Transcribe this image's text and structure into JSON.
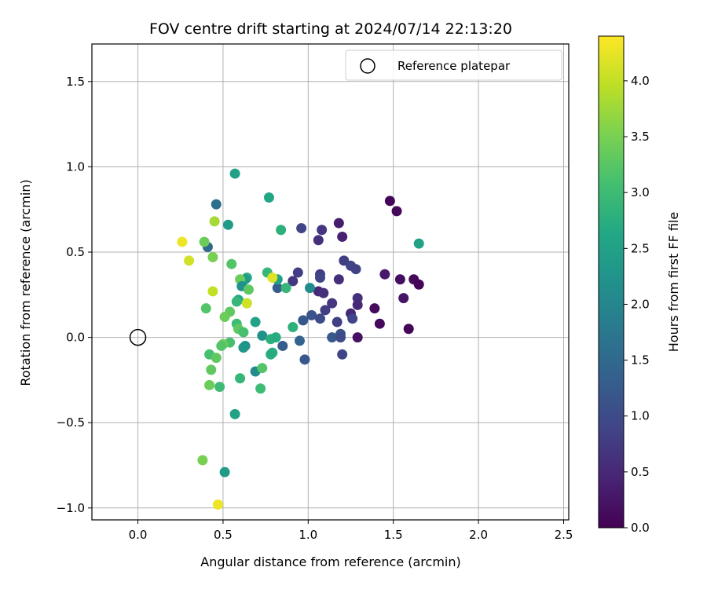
{
  "chart_data": {
    "type": "scatter",
    "title": "FOV centre drift starting at 2024/07/14 22:13:20",
    "xlabel": "Angular distance from reference (arcmin)",
    "ylabel": "Rotation from reference (arcmin)",
    "xlim": [
      -0.27,
      2.53
    ],
    "ylim": [
      -1.07,
      1.72
    ],
    "x_ticks": [
      0.0,
      0.5,
      1.0,
      1.5,
      2.0,
      2.5
    ],
    "x_tick_labels": [
      "0.0",
      "0.5",
      "1.0",
      "1.5",
      "2.0",
      "2.5"
    ],
    "y_ticks": [
      -1.0,
      -0.5,
      0.0,
      0.5,
      1.0,
      1.5
    ],
    "y_tick_labels": [
      "−1.0",
      "−0.5",
      "0.0",
      "0.5",
      "1.0",
      "1.5"
    ],
    "grid": true,
    "legend": {
      "position": "top-right",
      "entries": [
        {
          "label": "Reference platepar",
          "marker": "open-circle"
        }
      ]
    },
    "reference_point": {
      "x": 0.0,
      "y": 0.0
    },
    "colorbar": {
      "label": "Hours from first FF file",
      "colormap": "viridis",
      "range": [
        0.0,
        4.4
      ],
      "ticks": [
        0.0,
        0.5,
        1.0,
        1.5,
        2.0,
        2.5,
        3.0,
        3.5,
        4.0
      ],
      "tick_labels": [
        "0.0",
        "0.5",
        "1.0",
        "1.5",
        "2.0",
        "2.5",
        "3.0",
        "3.5",
        "4.0"
      ]
    },
    "points": [
      {
        "x": 1.48,
        "y": 0.8,
        "t": 0.05
      },
      {
        "x": 1.52,
        "y": 0.74,
        "t": 0.08
      },
      {
        "x": 1.45,
        "y": 0.37,
        "t": 0.3
      },
      {
        "x": 1.54,
        "y": 0.34,
        "t": 0.15
      },
      {
        "x": 1.62,
        "y": 0.34,
        "t": 0.1
      },
      {
        "x": 1.65,
        "y": 0.31,
        "t": 0.05
      },
      {
        "x": 1.56,
        "y": 0.23,
        "t": 0.25
      },
      {
        "x": 1.39,
        "y": 0.17,
        "t": 0.12
      },
      {
        "x": 1.42,
        "y": 0.08,
        "t": 0.1
      },
      {
        "x": 1.59,
        "y": 0.05,
        "t": 0.05
      },
      {
        "x": 1.29,
        "y": 0.0,
        "t": 0.2
      },
      {
        "x": 1.18,
        "y": 0.67,
        "t": 0.35
      },
      {
        "x": 1.2,
        "y": 0.59,
        "t": 0.4
      },
      {
        "x": 1.08,
        "y": 0.63,
        "t": 0.7
      },
      {
        "x": 1.06,
        "y": 0.57,
        "t": 0.6
      },
      {
        "x": 0.96,
        "y": 0.64,
        "t": 0.9
      },
      {
        "x": 1.21,
        "y": 0.45,
        "t": 0.8
      },
      {
        "x": 1.25,
        "y": 0.42,
        "t": 0.9
      },
      {
        "x": 1.28,
        "y": 0.4,
        "t": 0.85
      },
      {
        "x": 1.07,
        "y": 0.37,
        "t": 0.8
      },
      {
        "x": 1.07,
        "y": 0.35,
        "t": 0.9
      },
      {
        "x": 1.18,
        "y": 0.34,
        "t": 0.6
      },
      {
        "x": 0.94,
        "y": 0.38,
        "t": 0.8
      },
      {
        "x": 0.91,
        "y": 0.33,
        "t": 0.7
      },
      {
        "x": 1.06,
        "y": 0.27,
        "t": 0.5
      },
      {
        "x": 1.09,
        "y": 0.26,
        "t": 0.6
      },
      {
        "x": 1.29,
        "y": 0.23,
        "t": 0.6
      },
      {
        "x": 1.29,
        "y": 0.19,
        "t": 0.5
      },
      {
        "x": 1.14,
        "y": 0.2,
        "t": 0.7
      },
      {
        "x": 1.1,
        "y": 0.16,
        "t": 0.8
      },
      {
        "x": 1.02,
        "y": 0.13,
        "t": 1.1
      },
      {
        "x": 1.07,
        "y": 0.11,
        "t": 1.0
      },
      {
        "x": 0.97,
        "y": 0.1,
        "t": 1.2
      },
      {
        "x": 1.25,
        "y": 0.14,
        "t": 0.5
      },
      {
        "x": 1.26,
        "y": 0.11,
        "t": 0.9
      },
      {
        "x": 1.17,
        "y": 0.09,
        "t": 0.8
      },
      {
        "x": 1.14,
        "y": 0.0,
        "t": 1.2
      },
      {
        "x": 1.19,
        "y": 0.02,
        "t": 1.1
      },
      {
        "x": 1.19,
        "y": 0.0,
        "t": 1.0
      },
      {
        "x": 0.95,
        "y": -0.02,
        "t": 1.4
      },
      {
        "x": 0.85,
        "y": -0.05,
        "t": 1.3
      },
      {
        "x": 1.2,
        "y": -0.1,
        "t": 0.9
      },
      {
        "x": 0.98,
        "y": -0.13,
        "t": 1.2
      },
      {
        "x": 0.82,
        "y": 0.29,
        "t": 1.3
      },
      {
        "x": 1.01,
        "y": 0.29,
        "t": 2.1
      },
      {
        "x": 0.57,
        "y": 0.96,
        "t": 2.5
      },
      {
        "x": 0.77,
        "y": 0.82,
        "t": 2.6
      },
      {
        "x": 0.84,
        "y": 0.63,
        "t": 2.8
      },
      {
        "x": 0.46,
        "y": 0.78,
        "t": 1.6
      },
      {
        "x": 0.53,
        "y": 0.66,
        "t": 2.4
      },
      {
        "x": 0.41,
        "y": 0.53,
        "t": 1.5
      },
      {
        "x": 1.65,
        "y": 0.55,
        "t": 2.5
      },
      {
        "x": 0.55,
        "y": 0.43,
        "t": 3.2
      },
      {
        "x": 0.76,
        "y": 0.38,
        "t": 2.9
      },
      {
        "x": 0.82,
        "y": 0.34,
        "t": 2.5
      },
      {
        "x": 0.64,
        "y": 0.35,
        "t": 2.7
      },
      {
        "x": 0.63,
        "y": 0.34,
        "t": 2.4
      },
      {
        "x": 0.6,
        "y": 0.34,
        "t": 3.4
      },
      {
        "x": 0.61,
        "y": 0.3,
        "t": 2.2
      },
      {
        "x": 0.87,
        "y": 0.29,
        "t": 2.9
      },
      {
        "x": 0.65,
        "y": 0.28,
        "t": 3.3
      },
      {
        "x": 0.59,
        "y": 0.22,
        "t": 2.6
      },
      {
        "x": 0.58,
        "y": 0.21,
        "t": 2.9
      },
      {
        "x": 0.64,
        "y": 0.2,
        "t": 3.2
      },
      {
        "x": 0.54,
        "y": 0.15,
        "t": 3.3
      },
      {
        "x": 0.51,
        "y": 0.12,
        "t": 3.4
      },
      {
        "x": 0.69,
        "y": 0.09,
        "t": 2.5
      },
      {
        "x": 0.58,
        "y": 0.08,
        "t": 3.0
      },
      {
        "x": 0.59,
        "y": 0.05,
        "t": 3.3
      },
      {
        "x": 0.62,
        "y": 0.03,
        "t": 3.1
      },
      {
        "x": 0.73,
        "y": 0.01,
        "t": 2.2
      },
      {
        "x": 0.78,
        "y": -0.01,
        "t": 2.8
      },
      {
        "x": 0.81,
        "y": 0.0,
        "t": 2.7
      },
      {
        "x": 0.91,
        "y": 0.06,
        "t": 2.8
      },
      {
        "x": 0.63,
        "y": -0.05,
        "t": 2.2
      },
      {
        "x": 0.62,
        "y": -0.06,
        "t": 2.3
      },
      {
        "x": 0.54,
        "y": -0.03,
        "t": 3.1
      },
      {
        "x": 0.5,
        "y": -0.04,
        "t": 3.4
      },
      {
        "x": 0.49,
        "y": -0.05,
        "t": 3.2
      },
      {
        "x": 0.42,
        "y": -0.1,
        "t": 3.1
      },
      {
        "x": 0.46,
        "y": -0.12,
        "t": 3.3
      },
      {
        "x": 0.78,
        "y": -0.1,
        "t": 2.8
      },
      {
        "x": 0.79,
        "y": -0.09,
        "t": 2.7
      },
      {
        "x": 0.69,
        "y": -0.2,
        "t": 2.1
      },
      {
        "x": 0.73,
        "y": -0.18,
        "t": 3.2
      },
      {
        "x": 0.43,
        "y": -0.19,
        "t": 3.3
      },
      {
        "x": 0.6,
        "y": -0.24,
        "t": 2.9
      },
      {
        "x": 0.42,
        "y": -0.28,
        "t": 3.4
      },
      {
        "x": 0.48,
        "y": -0.29,
        "t": 3.0
      },
      {
        "x": 0.72,
        "y": -0.3,
        "t": 3.0
      },
      {
        "x": 0.57,
        "y": -0.45,
        "t": 2.5
      },
      {
        "x": 0.4,
        "y": 0.17,
        "t": 3.2
      },
      {
        "x": 0.44,
        "y": 0.27,
        "t": 4.0
      },
      {
        "x": 0.44,
        "y": 0.47,
        "t": 3.5
      },
      {
        "x": 0.39,
        "y": 0.56,
        "t": 3.4
      },
      {
        "x": 0.26,
        "y": 0.56,
        "t": 4.3
      },
      {
        "x": 0.3,
        "y": 0.45,
        "t": 4.1
      },
      {
        "x": 0.45,
        "y": 0.68,
        "t": 3.8
      },
      {
        "x": 0.64,
        "y": 0.2,
        "t": 4.1
      },
      {
        "x": 0.79,
        "y": 0.35,
        "t": 4.2
      },
      {
        "x": 0.38,
        "y": -0.72,
        "t": 3.5
      },
      {
        "x": 0.51,
        "y": -0.79,
        "t": 2.4
      },
      {
        "x": 0.47,
        "y": -0.98,
        "t": 4.3
      }
    ]
  }
}
